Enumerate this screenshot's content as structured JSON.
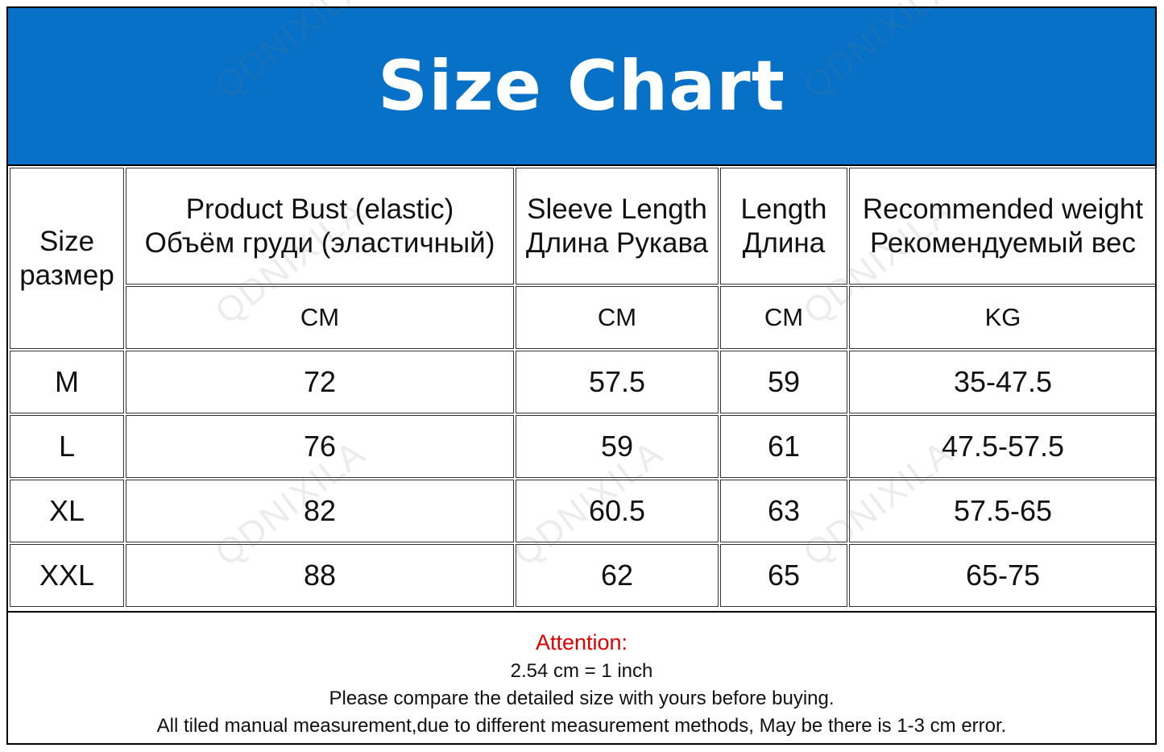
{
  "title": "Size Chart",
  "watermark": "QDNIXILA",
  "colors": {
    "banner": "#0671c6",
    "attention": "#e00000"
  },
  "header": {
    "size": [
      "Size",
      "размер"
    ],
    "columns": [
      {
        "en": "Product Bust (elastic)",
        "ru": "Объём груди (эластичный)",
        "unit": "CM"
      },
      {
        "en": "Sleeve Length",
        "ru": "Длина Рукава",
        "unit": "CM"
      },
      {
        "en": "Length",
        "ru": "Длина",
        "unit": "CM"
      },
      {
        "en": "Recommended weight",
        "ru": "Рекомендуемый вес",
        "unit": "KG"
      }
    ]
  },
  "rows": [
    {
      "size": "M",
      "bust": "72",
      "sleeve": "57.5",
      "length": "59",
      "weight": "35-47.5"
    },
    {
      "size": "L",
      "bust": "76",
      "sleeve": "59",
      "length": "61",
      "weight": "47.5-57.5"
    },
    {
      "size": "XL",
      "bust": "82",
      "sleeve": "60.5",
      "length": "63",
      "weight": "57.5-65"
    },
    {
      "size": "XXL",
      "bust": "88",
      "sleeve": "62",
      "length": "65",
      "weight": "65-75"
    }
  ],
  "notes": {
    "attention": "Attention:",
    "line1": "2.54 cm = 1 inch",
    "line2": "Please compare the detailed size with yours before buying.",
    "line3": "All tiled manual measurement,due to different measurement methods, May be there is 1-3 cm error."
  }
}
